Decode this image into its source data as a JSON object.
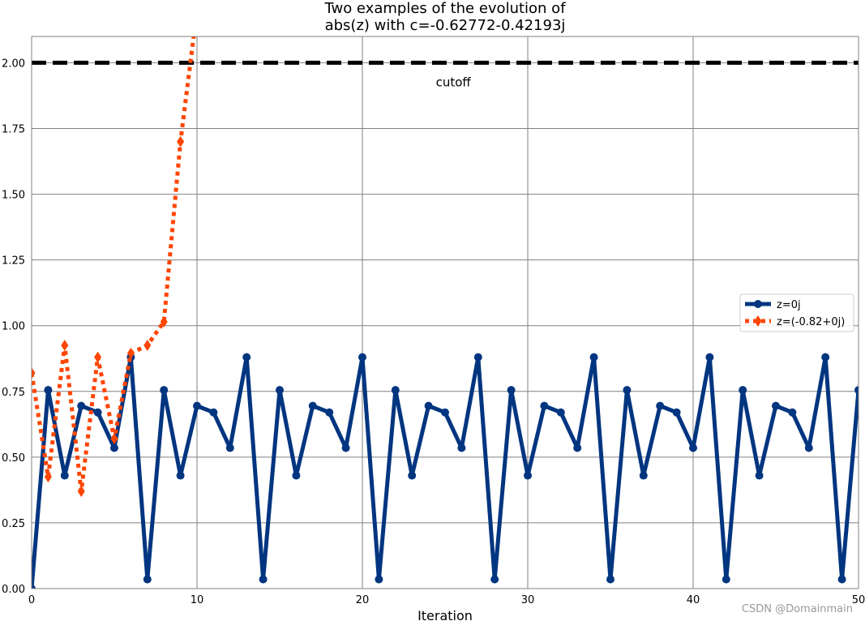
{
  "chart_data": {
    "type": "line",
    "title": [
      "Two examples of the evolution of",
      "abs(z) with c=-0.62772-0.42193j"
    ],
    "xlabel": "Iteration",
    "ylabel": "",
    "xlim": [
      0,
      50
    ],
    "ylim": [
      0,
      2.1
    ],
    "xticks": [
      0,
      10,
      20,
      30,
      40,
      50
    ],
    "xtick_labels": [
      "0",
      "10",
      "20",
      "30",
      "40",
      "50"
    ],
    "yticks": [
      0,
      0.25,
      0.5,
      0.75,
      1.0,
      1.25,
      1.5,
      1.75,
      2.0
    ],
    "ytick_labels": [
      "0.00",
      "0.25",
      "0.50",
      "0.75",
      "1.00",
      "1.25",
      "1.50",
      "1.75",
      "2.00"
    ],
    "grid": true,
    "legend_position": "center-right",
    "cutoff": {
      "y": 2.0,
      "label": "cutoff",
      "label_x": 25.5,
      "label_y": 1.91,
      "color": "#000000"
    },
    "series": [
      {
        "name": "z=0j",
        "color": "#003580",
        "style": "solid",
        "marker": "circle",
        "x": [
          0,
          1,
          2,
          3,
          4,
          5,
          6,
          7,
          8,
          9,
          10,
          11,
          12,
          13,
          14,
          15,
          16,
          17,
          18,
          19,
          20,
          21,
          22,
          23,
          24,
          25,
          26,
          27,
          28,
          29,
          30,
          31,
          32,
          33,
          34,
          35,
          36,
          37,
          38,
          39,
          40,
          41,
          42,
          43,
          44,
          45,
          46,
          47,
          48,
          49,
          50
        ],
        "y": [
          0,
          0.755,
          0.43,
          0.695,
          0.67,
          0.535,
          0.88,
          0.035,
          0.755,
          0.43,
          0.695,
          0.67,
          0.535,
          0.88,
          0.035,
          0.755,
          0.43,
          0.695,
          0.67,
          0.535,
          0.88,
          0.035,
          0.755,
          0.43,
          0.695,
          0.67,
          0.535,
          0.88,
          0.035,
          0.755,
          0.43,
          0.695,
          0.67,
          0.535,
          0.88,
          0.035,
          0.755,
          0.43,
          0.695,
          0.67,
          0.535,
          0.88,
          0.035,
          0.755,
          0.43,
          0.695,
          0.67,
          0.535,
          0.88,
          0.035,
          0.755
        ]
      },
      {
        "name": "z=(-0.82+0j)",
        "color": "#ff4500",
        "style": "dotted",
        "marker": "diamond",
        "x": [
          0,
          1,
          2,
          3,
          4,
          5,
          6,
          7,
          8,
          9,
          10
        ],
        "y": [
          0.82,
          0.425,
          0.925,
          0.37,
          0.88,
          0.57,
          0.895,
          0.925,
          1.015,
          1.7,
          2.2
        ]
      }
    ]
  },
  "watermark": "CSDN @Domainmain"
}
